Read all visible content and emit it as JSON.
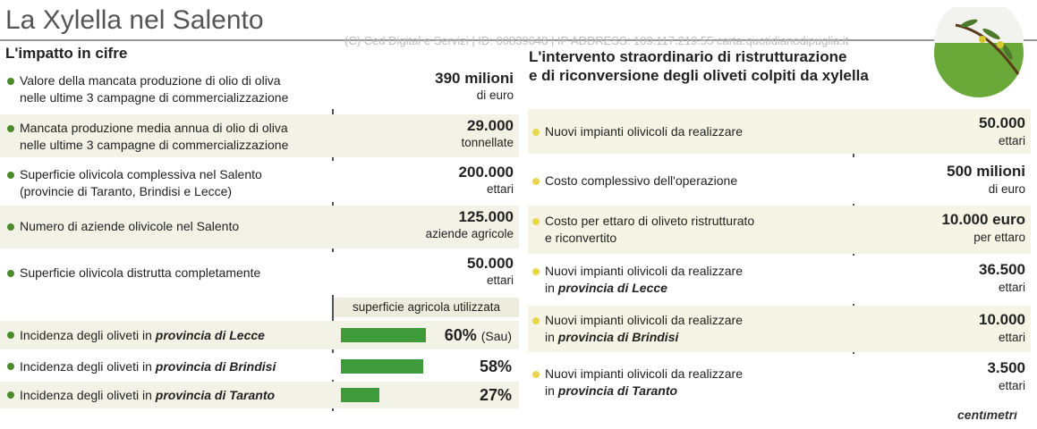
{
  "header": {
    "title": "La Xylella nel Salento",
    "watermark": "(C) Ced Digital e Servizi | ID: 00839648 | IP ADDRESS: 109.117.219.55 carta.quotidianodipuglia.it"
  },
  "impact": {
    "title": "L'impatto  in cifre",
    "rows": [
      {
        "lines": [
          "Valore della mancata produzione di olio di oliva",
          "nelle ultime 3 campagne di commercializzazione"
        ],
        "value": "390 milioni",
        "unit": "di euro"
      },
      {
        "lines": [
          "Mancata produzione media annua di olio di oliva",
          "nelle ultime 3 campagne di commercializzazione"
        ],
        "value": "29.000",
        "unit": "tonnellate"
      },
      {
        "lines": [
          "Superficie olivicola complessiva nel Salento",
          "(provincie di Taranto, Brindisi e Lecce)"
        ],
        "value": "200.000",
        "unit": "ettari"
      },
      {
        "lines": [
          "Numero di aziende olivicole nel Salento"
        ],
        "value": "125.000",
        "unit": "aziende agricole"
      },
      {
        "lines": [
          "Superficie olivicola distrutta completamente"
        ],
        "value": "50.000",
        "unit": "ettari"
      }
    ],
    "bar_header": "superficie agricola utilizzata",
    "bars": [
      {
        "label": "Incidenza degli oliveti in",
        "emphasis": "provincia di Lecce",
        "value": 60,
        "value_label": "60%",
        "note": "(Sau)"
      },
      {
        "label": "Incidenza degli oliveti in",
        "emphasis": "provincia di Brindisi",
        "value": 58,
        "value_label": "58%"
      },
      {
        "label": "Incidenza degli oliveti in",
        "emphasis": "provincia di Taranto",
        "value": 27,
        "value_label": "27%"
      }
    ]
  },
  "intervention": {
    "title_lines": [
      "L'intervento straordinario di ristrutturazione",
      "e di riconversione degli oliveti colpiti da xylella"
    ],
    "rows": [
      {
        "lines": [
          "Nuovi impianti olivicoli da realizzare"
        ],
        "value": "50.000",
        "unit": "ettari"
      },
      {
        "lines": [
          "Costo complessivo dell'operazione"
        ],
        "value": "500 milioni",
        "unit": "di euro"
      },
      {
        "lines": [
          "Costo per ettaro di oliveto ristrutturato",
          "e riconvertito"
        ],
        "value": "10.000 euro",
        "unit": "per ettaro"
      },
      {
        "lines": [
          "Nuovi impianti olivicoli da realizzare",
          "in"
        ],
        "emphasis": "provincia di Lecce",
        "value": "36.500",
        "unit": "ettari"
      },
      {
        "lines": [
          "Nuovi impianti olivicoli da realizzare",
          "in"
        ],
        "emphasis": "provincia di Brindisi",
        "value": "10.000",
        "unit": "ettari"
      },
      {
        "lines": [
          "Nuovi impianti olivicoli da realizzare",
          "in"
        ],
        "emphasis": "provincia di Taranto",
        "value": "3.500",
        "unit": "ettari"
      }
    ]
  },
  "brand": "centimetri"
}
